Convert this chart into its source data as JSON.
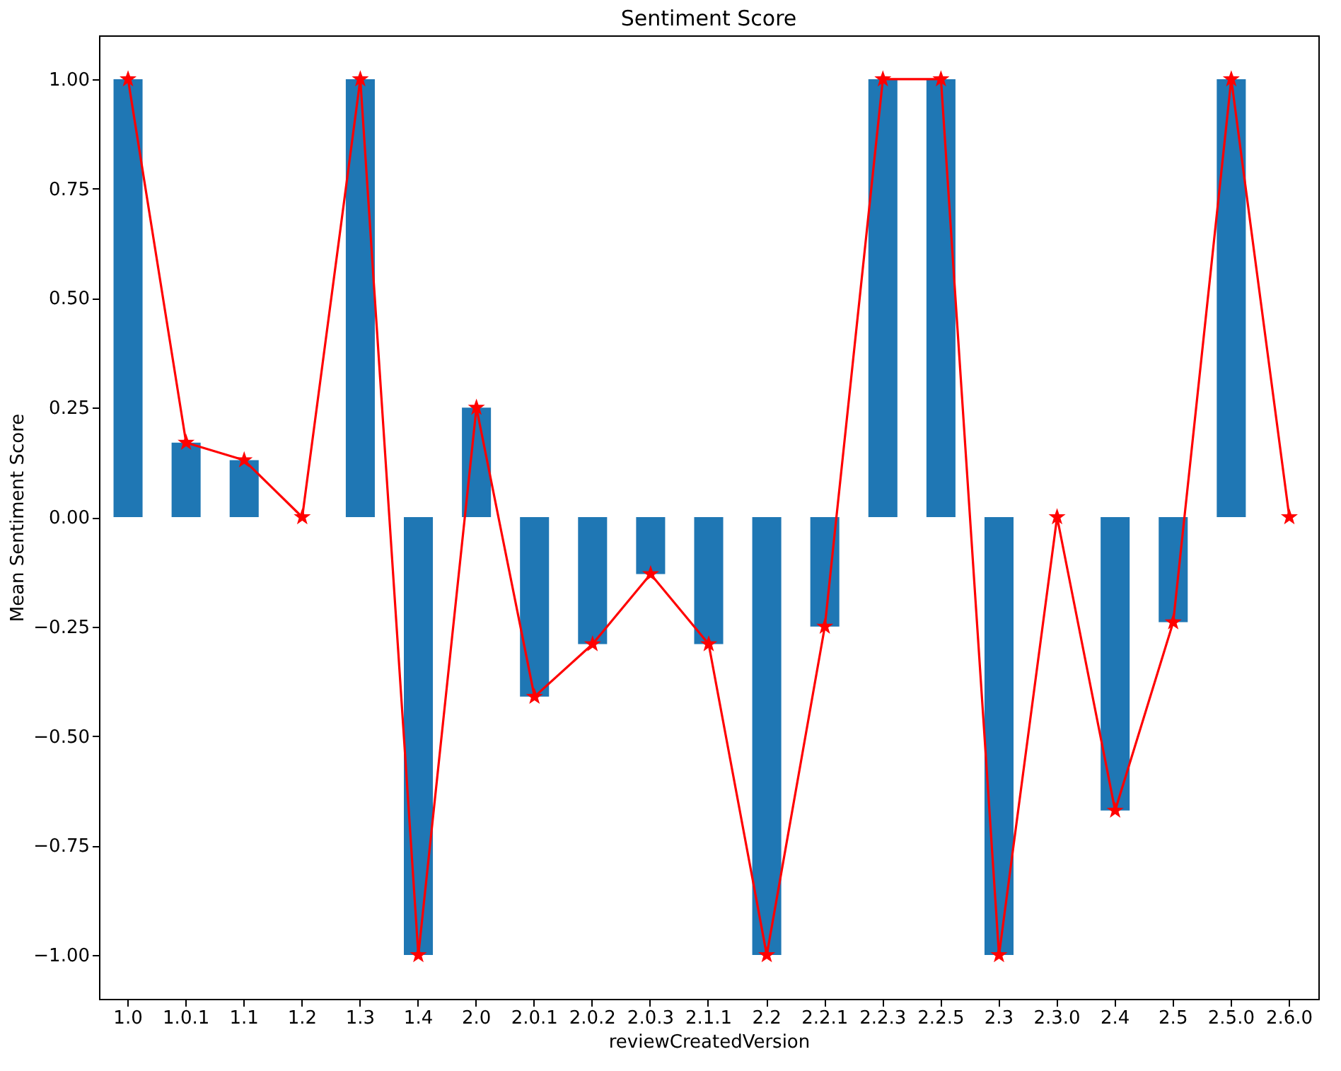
{
  "chart_data": {
    "type": "bar",
    "title": "Sentiment Score",
    "xlabel": "reviewCreatedVersion",
    "ylabel": "Mean Sentiment Score",
    "categories": [
      "1.0",
      "1.0.1",
      "1.1",
      "1.2",
      "1.3",
      "1.4",
      "2.0",
      "2.0.1",
      "2.0.2",
      "2.0.3",
      "2.1.1",
      "2.2",
      "2.2.1",
      "2.2.3",
      "2.2.5",
      "2.3",
      "2.3.0",
      "2.4",
      "2.5",
      "2.5.0",
      "2.6.0"
    ],
    "series": [
      {
        "color": "#1f77b4",
        "values": [
          1.0,
          0.17,
          0.13,
          0,
          1.0,
          -1.0,
          0.25,
          -0.41,
          -0.29,
          -0.13,
          -0.29,
          -1.0,
          -0.25,
          1.0,
          1.0,
          -1.0,
          0,
          -0.67,
          -0.24,
          1.0,
          0
        ]
      },
      {
        "type": "line",
        "color": "#ff0000",
        "marker": "star",
        "line_style": "solid",
        "values": [
          1.0,
          0.17,
          0.13,
          0,
          1.0,
          -1.0,
          0.25,
          -0.41,
          -0.29,
          -0.13,
          -0.29,
          -1.0,
          -0.25,
          1.0,
          1.0,
          -1.0,
          0,
          -0.67,
          -0.24,
          1.0,
          0
        ]
      }
    ],
    "ylim": [
      -1.1,
      1.1
    ],
    "yticks": [
      {
        "value": -1,
        "label": "−1.00"
      },
      {
        "value": -0.75,
        "label": "−0.75"
      },
      {
        "value": -0.5,
        "label": "−0.50"
      },
      {
        "value": -0.25,
        "label": "−0.25"
      },
      {
        "value": 0,
        "label": "0.00"
      },
      {
        "value": 0.25,
        "label": "0.25"
      },
      {
        "value": 0.5,
        "label": "0.50"
      },
      {
        "value": 0.75,
        "label": "0.75"
      },
      {
        "value": 1,
        "label": "1.00"
      }
    ],
    "grid": false,
    "legend": false
  }
}
